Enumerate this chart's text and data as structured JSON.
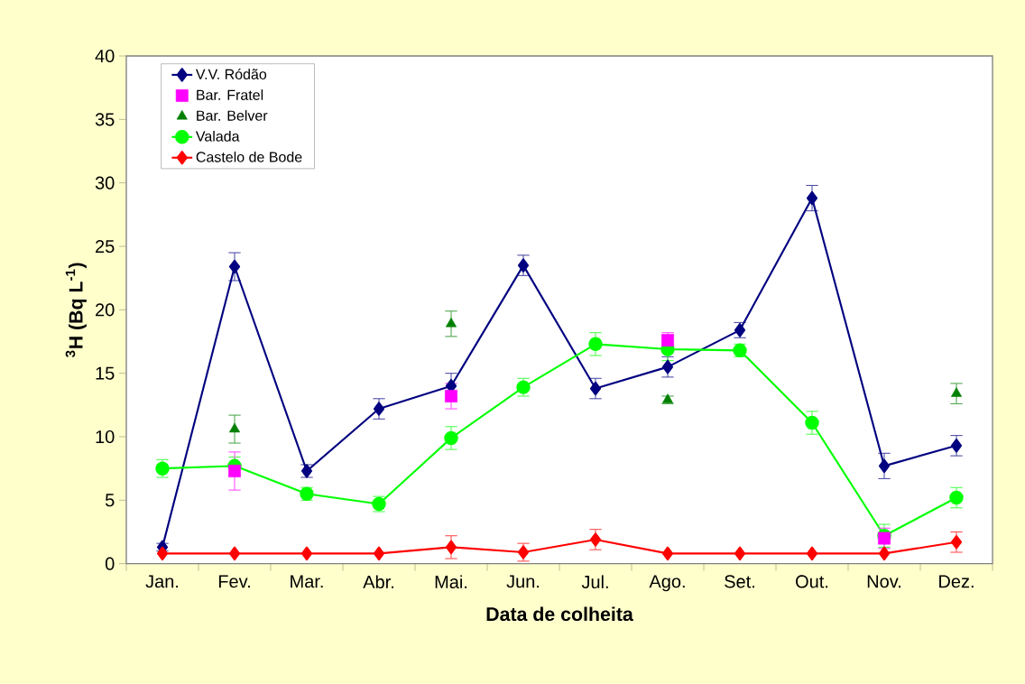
{
  "chart_data": {
    "type": "line",
    "xlabel": "Data de colheita",
    "ylabel": "$^{3}$H (Bq L$^{-1}$)",
    "categories": [
      "Jan.",
      "Fev.",
      "Mar.",
      "Abr.",
      "Mai.",
      "Jun.",
      "Jul.",
      "Ago.",
      "Set.",
      "Out.",
      "Nov.",
      "Dez."
    ],
    "ylim": [
      0,
      40
    ],
    "yticks": [
      0,
      5,
      10,
      15,
      20,
      25,
      30,
      35,
      40
    ],
    "grid": false,
    "legend": "top left",
    "line_style": "solid",
    "series": [
      {
        "name": "V.V. Ródão",
        "marker": "diamond",
        "color": "#000080",
        "values": [
          1.3,
          23.4,
          7.3,
          12.2,
          14.0,
          23.5,
          13.8,
          15.5,
          18.4,
          28.8,
          7.7,
          9.3
        ],
        "errors": [
          0.3,
          1.1,
          0.5,
          0.8,
          1.0,
          0.8,
          0.8,
          0.8,
          0.6,
          1.0,
          1.0,
          0.8
        ]
      },
      {
        "name": "Bar. Fratel",
        "type": "scatter",
        "marker": "square",
        "color": "#ff00ff",
        "values": [
          null,
          7.3,
          null,
          null,
          13.2,
          null,
          null,
          17.6,
          null,
          null,
          2.0,
          null
        ],
        "errors": [
          null,
          1.5,
          null,
          null,
          1.0,
          null,
          null,
          0.6,
          null,
          null,
          0.8,
          null
        ]
      },
      {
        "name": "Bar. Belver",
        "type": "scatter",
        "marker": "triangle",
        "color": "#008000",
        "values": [
          null,
          10.6,
          null,
          null,
          18.9,
          null,
          null,
          12.9,
          null,
          null,
          null,
          13.4
        ],
        "errors": [
          null,
          1.1,
          null,
          null,
          1.0,
          null,
          null,
          0.3,
          null,
          null,
          null,
          0.8
        ]
      },
      {
        "name": "Valada",
        "marker": "circle",
        "color": "#00ff00",
        "values": [
          7.5,
          7.7,
          5.5,
          4.7,
          9.9,
          13.9,
          17.3,
          16.9,
          16.8,
          11.1,
          2.2,
          5.2
        ],
        "errors": [
          0.7,
          0.7,
          0.5,
          0.6,
          0.9,
          0.7,
          0.9,
          0.9,
          0.5,
          0.9,
          0.9,
          0.8
        ]
      },
      {
        "name": "Castelo de Bode",
        "marker": "diamond",
        "color": "#ff0000",
        "values": [
          0.8,
          0.8,
          0.8,
          0.8,
          1.3,
          0.9,
          1.9,
          0.8,
          0.8,
          0.8,
          0.8,
          1.7
        ],
        "errors": [
          null,
          null,
          null,
          null,
          0.9,
          0.7,
          0.8,
          null,
          null,
          null,
          null,
          0.8
        ]
      }
    ]
  }
}
